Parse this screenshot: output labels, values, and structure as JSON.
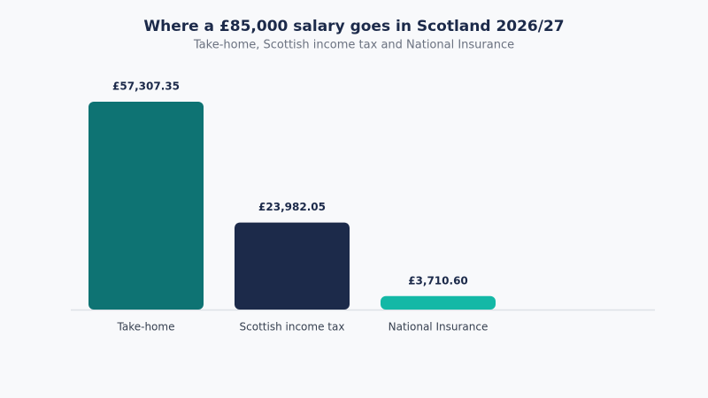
{
  "chart_data": {
    "type": "bar",
    "title": "Where a £85,000 salary goes in Scotland 2026/27",
    "subtitle": "Take-home, Scottish income tax and National Insurance",
    "categories": [
      "Take-home",
      "Scottish income tax",
      "National Insurance"
    ],
    "values": [
      57307.35,
      23982.05,
      3710.6
    ],
    "value_labels": [
      "£57,307.35",
      "£23,982.05",
      "£3,710.60"
    ],
    "colors": [
      "#0e7373",
      "#1c2a4a",
      "#14b8a6"
    ]
  }
}
